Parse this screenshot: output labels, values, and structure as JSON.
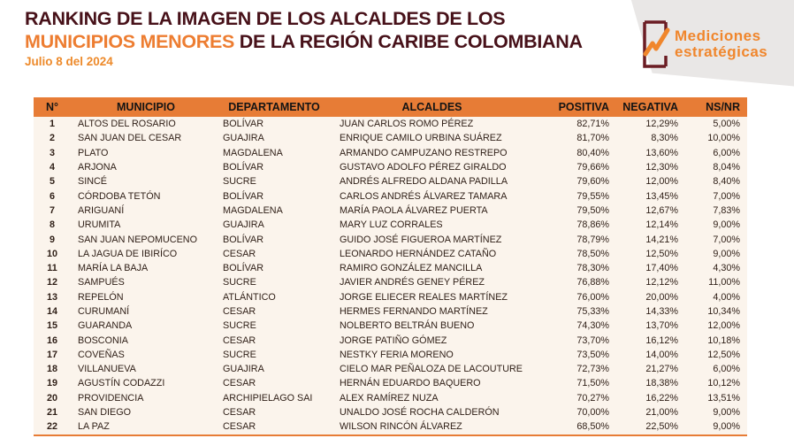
{
  "header": {
    "title_line1": "RANKING DE LA IMAGEN DE LOS ALCALDES DE LOS",
    "title_line2_highlight": "MUNICIPIOS MENORES",
    "title_line2_rest": " DE LA REGIÓN CARIBE COLOMBIANA",
    "date": "Julio 8 del 2024",
    "logo": {
      "line1": "Mediciones",
      "line2": "estratégicas",
      "icon": "checkmark-clipboard-icon"
    }
  },
  "colors": {
    "accent_orange": "#e77c36",
    "title_maroon": "#471119",
    "highlight_orange": "#ed7d31",
    "date_orange": "#ed8a2b",
    "logo_orange": "#f0862c",
    "logo_maroon": "#6b1d24",
    "shape_gray": "#e9e7e6",
    "row_bg": "#fbf4ec"
  },
  "table": {
    "columns": [
      "N°",
      "MUNICIPIO",
      "DEPARTAMENTO",
      "ALCALDES",
      "POSITIVA",
      "NEGATIVA",
      "NS/NR"
    ],
    "rows": [
      {
        "n": "1",
        "municipio": "ALTOS DEL ROSARIO",
        "departamento": "BOLÍVAR",
        "alcalde": "JUAN CARLOS ROMO PÉREZ",
        "positiva": "82,71%",
        "negativa": "12,29%",
        "nsnr": "5,00%"
      },
      {
        "n": "2",
        "municipio": "SAN JUAN DEL CESAR",
        "departamento": "GUAJIRA",
        "alcalde": "ENRIQUE CAMILO URBINA SUÁREZ",
        "positiva": "81,70%",
        "negativa": "8,30%",
        "nsnr": "10,00%"
      },
      {
        "n": "3",
        "municipio": "PLATO",
        "departamento": "MAGDALENA",
        "alcalde": "ARMANDO CAMPUZANO RESTREPO",
        "positiva": "80,40%",
        "negativa": "13,60%",
        "nsnr": "6,00%"
      },
      {
        "n": "4",
        "municipio": "ARJONA",
        "departamento": "BOLÍVAR",
        "alcalde": "GUSTAVO ADOLFO PÉREZ GIRALDO",
        "positiva": "79,66%",
        "negativa": "12,30%",
        "nsnr": "8,04%"
      },
      {
        "n": "5",
        "municipio": "SINCÉ",
        "departamento": "SUCRE",
        "alcalde": "ANDRÉS ALFREDO ALDANA PADILLA",
        "positiva": "79,60%",
        "negativa": "12,00%",
        "nsnr": "8,40%"
      },
      {
        "n": "6",
        "municipio": "CÓRDOBA TETÓN",
        "departamento": "BOLÍVAR",
        "alcalde": "CARLOS ANDRÉS ÁLVAREZ TAMARA",
        "positiva": "79,55%",
        "negativa": "13,45%",
        "nsnr": "7,00%"
      },
      {
        "n": "7",
        "municipio": "ARIGUANÍ",
        "departamento": "MAGDALENA",
        "alcalde": "MARÍA PAOLA ÁLVAREZ PUERTA",
        "positiva": "79,50%",
        "negativa": "12,67%",
        "nsnr": "7,83%"
      },
      {
        "n": "8",
        "municipio": "URUMITA",
        "departamento": "GUAJIRA",
        "alcalde": "MARY LUZ CORRALES",
        "positiva": "78,86%",
        "negativa": "12,14%",
        "nsnr": "9,00%"
      },
      {
        "n": "9",
        "municipio": "SAN JUAN NEPOMUCENO",
        "departamento": "BOLÍVAR",
        "alcalde": "GUIDO JOSÉ FIGUEROA MARTÍNEZ",
        "positiva": "78,79%",
        "negativa": "14,21%",
        "nsnr": "7,00%"
      },
      {
        "n": "10",
        "municipio": "LA JAGUA DE IBIRÍCO",
        "departamento": "CESAR",
        "alcalde": "LEONARDO HERNÁNDEZ CATAÑO",
        "positiva": "78,50%",
        "negativa": "12,50%",
        "nsnr": "9,00%"
      },
      {
        "n": "11",
        "municipio": "MARÍA LA BAJA",
        "departamento": "BOLÍVAR",
        "alcalde": "RAMIRO GONZÁLEZ MANCILLA",
        "positiva": "78,30%",
        "negativa": "17,40%",
        "nsnr": "4,30%"
      },
      {
        "n": "12",
        "municipio": "SAMPUÉS",
        "departamento": "SUCRE",
        "alcalde": "JAVIER ANDRÉS GENEY PÉREZ",
        "positiva": "76,88%",
        "negativa": "12,12%",
        "nsnr": "11,00%"
      },
      {
        "n": "13",
        "municipio": "REPELÓN",
        "departamento": "ATLÁNTICO",
        "alcalde": "JORGE ELIECER REALES MARTÍNEZ",
        "positiva": "76,00%",
        "negativa": "20,00%",
        "nsnr": "4,00%"
      },
      {
        "n": "14",
        "municipio": "CURUMANÍ",
        "departamento": "CESAR",
        "alcalde": "HERMES FERNANDO MARTÍNEZ",
        "positiva": "75,33%",
        "negativa": "14,33%",
        "nsnr": "10,34%"
      },
      {
        "n": "15",
        "municipio": "GUARANDA",
        "departamento": "SUCRE",
        "alcalde": "NOLBERTO BELTRÁN BUENO",
        "positiva": "74,30%",
        "negativa": "13,70%",
        "nsnr": "12,00%"
      },
      {
        "n": "16",
        "municipio": "BOSCONIA",
        "departamento": "CESAR",
        "alcalde": "JORGE PATIÑO GÓMEZ",
        "positiva": "73,70%",
        "negativa": "16,12%",
        "nsnr": "10,18%"
      },
      {
        "n": "17",
        "municipio": "COVEÑAS",
        "departamento": "SUCRE",
        "alcalde": "NESTKY FERIA MORENO",
        "positiva": "73,50%",
        "negativa": "14,00%",
        "nsnr": "12,50%"
      },
      {
        "n": "18",
        "municipio": "VILLANUEVA",
        "departamento": "GUAJIRA",
        "alcalde": "CIELO MAR PEÑALOZA DE LACOUTURE",
        "positiva": "72,73%",
        "negativa": "21,27%",
        "nsnr": "6,00%"
      },
      {
        "n": "19",
        "municipio": "AGUSTÍN CODAZZI",
        "departamento": "CESAR",
        "alcalde": "HERNÁN EDUARDO BAQUERO",
        "positiva": "71,50%",
        "negativa": "18,38%",
        "nsnr": "10,12%"
      },
      {
        "n": "20",
        "municipio": "PROVIDENCIA",
        "departamento": "ARCHIPIELAGO SAI",
        "alcalde": "ALEX RAMÍREZ NUZA",
        "positiva": "70,27%",
        "negativa": "16,22%",
        "nsnr": "13,51%"
      },
      {
        "n": "21",
        "municipio": "SAN DIEGO",
        "departamento": "CESAR",
        "alcalde": "UNALDO JOSÉ ROCHA CALDERÓN",
        "positiva": "70,00%",
        "negativa": "21,00%",
        "nsnr": "9,00%"
      },
      {
        "n": "22",
        "municipio": "LA PAZ",
        "departamento": "CESAR",
        "alcalde": "WILSON RINCÓN ÁLVAREZ",
        "positiva": "68,50%",
        "negativa": "22,50%",
        "nsnr": "9,00%"
      }
    ]
  }
}
